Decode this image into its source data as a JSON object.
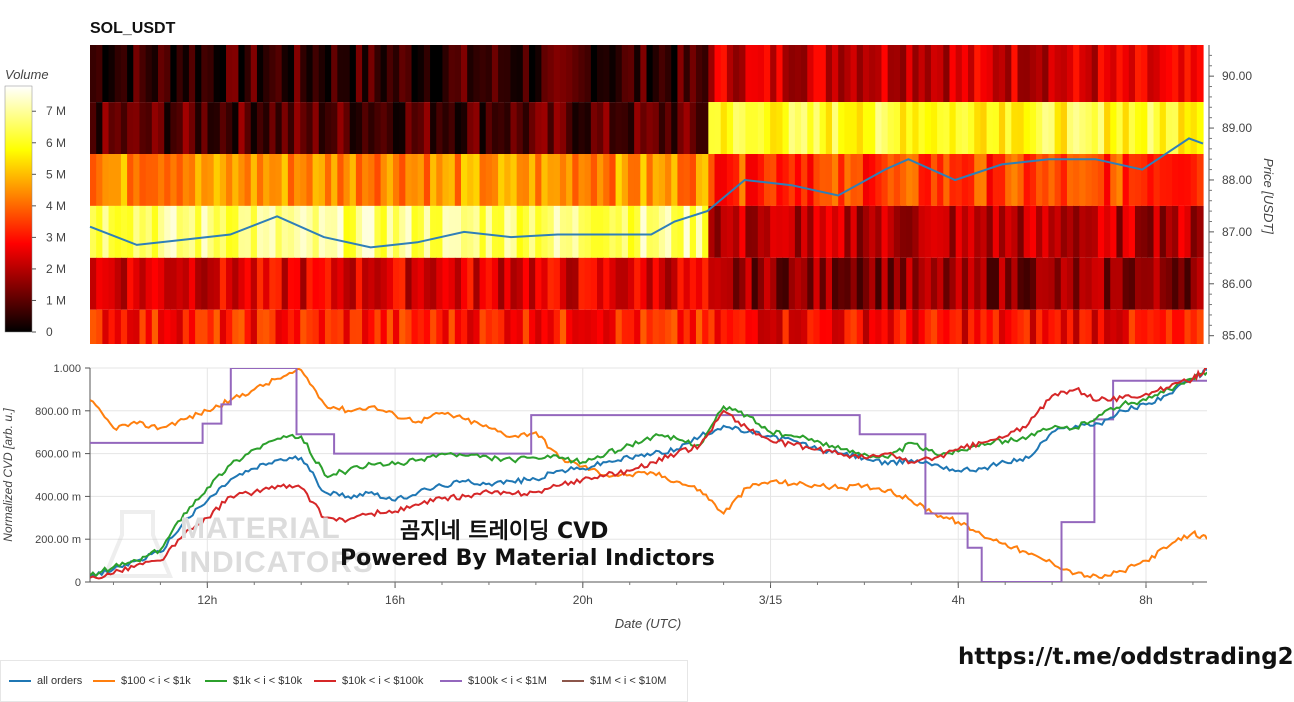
{
  "title": "SOL_USDT",
  "watermark": [
    "MATERIAL",
    "INDICATORS"
  ],
  "overlay_lines": [
    "곰지네 트레이딩 CVD",
    "Powered By Material Indictors"
  ],
  "link": "https://t.me/oddstrading2",
  "colors": {
    "all_orders": "#1f77b4",
    "r100_1k": "#ff7f0e",
    "r1k_10k": "#2ca02c",
    "r10k_100k": "#d62728",
    "r100k_1m": "#9467bd",
    "r1m_10m": "#8c564b"
  },
  "legend": [
    {
      "label": "all orders",
      "color": "#1f77b4"
    },
    {
      "label": "$100 < i < $1k",
      "color": "#ff7f0e"
    },
    {
      "label": "$1k < i < $10k",
      "color": "#2ca02c"
    },
    {
      "label": "$10k < i < $100k",
      "color": "#d62728"
    },
    {
      "label": "$100k < i < $1M",
      "color": "#9467bd"
    },
    {
      "label": "$1M < i < $10M",
      "color": "#8c564b"
    }
  ],
  "chart_data": [
    {
      "type": "heatmap",
      "title": "SOL_USDT",
      "ylabel": "Price [USDT]",
      "colorbar_label": "Volume",
      "colorbar_ticks": [
        "0",
        "1 M",
        "2 M",
        "3 M",
        "4 M",
        "5 M",
        "6 M",
        "7 M"
      ],
      "colorbar_range": [
        0,
        7800000
      ],
      "y_ticks": [
        "85.00",
        "86.00",
        "87.00",
        "88.00",
        "89.00",
        "90.00"
      ],
      "ylim": [
        84.84,
        90.6
      ],
      "x_range_hours": [
        9.5,
        33.3
      ],
      "price_bands": [
        {
          "low": 89.5,
          "high": 90.6,
          "level_before": 0.08,
          "level_after": 0.3
        },
        {
          "low": 88.5,
          "high": 89.5,
          "level_before": 0.12,
          "level_after": 0.78
        },
        {
          "low": 87.5,
          "high": 88.5,
          "level_before": 0.58,
          "level_after": 0.45
        },
        {
          "low": 86.5,
          "high": 87.5,
          "level_before": 0.86,
          "level_after": 0.26
        },
        {
          "low": 85.5,
          "high": 86.5,
          "level_before": 0.32,
          "level_after": 0.2
        },
        {
          "low": 84.84,
          "high": 85.5,
          "level_before": 0.4,
          "level_after": 0.36
        }
      ],
      "regime_change_hours": 22.7,
      "price_series": {
        "hours": [
          9.5,
          10.5,
          11.5,
          12.5,
          13.5,
          14.5,
          15.5,
          16.5,
          17.5,
          18.5,
          19.5,
          20.5,
          21.5,
          22.0,
          22.7,
          23.5,
          24.5,
          25.5,
          26.5,
          27.0,
          28.0,
          29.0,
          30.0,
          31.0,
          32.0,
          33.0,
          33.3
        ],
        "price": [
          87.1,
          86.75,
          86.85,
          86.95,
          87.3,
          86.9,
          86.7,
          86.8,
          87.0,
          86.9,
          86.95,
          86.95,
          86.95,
          87.2,
          87.4,
          88.0,
          87.9,
          87.7,
          88.2,
          88.4,
          88.0,
          88.3,
          88.4,
          88.4,
          88.2,
          88.8,
          88.7
        ]
      }
    },
    {
      "type": "line",
      "ylabel": "Normalized CVD [arb. u.]",
      "xlabel": "Date (UTC)",
      "x_ticks": [
        "12h",
        "16h",
        "20h",
        "3/15",
        "4h",
        "8h"
      ],
      "x_tick_hours": [
        12,
        16,
        20,
        24,
        28,
        32
      ],
      "y_ticks": [
        "0",
        "200.00 m",
        "400.00 m",
        "600.00 m",
        "800.00 m",
        "1.000"
      ],
      "ylim": [
        0,
        1
      ],
      "x_range_hours": [
        9.5,
        33.3
      ],
      "series": [
        {
          "name": "all orders",
          "x": [
            9.5,
            10.0,
            10.5,
            11.0,
            11.5,
            12.0,
            12.5,
            13.0,
            13.5,
            14.0,
            14.5,
            15.0,
            15.5,
            16.0,
            16.5,
            17.0,
            17.5,
            18.0,
            18.5,
            19.0,
            19.5,
            20.0,
            20.5,
            21.0,
            21.5,
            22.0,
            22.5,
            23.0,
            23.5,
            24.0,
            24.5,
            25.0,
            25.5,
            26.0,
            26.5,
            27.0,
            27.5,
            28.0,
            28.5,
            29.0,
            29.5,
            30.0,
            30.5,
            31.0,
            31.5,
            32.0,
            32.5,
            33.0,
            33.3
          ],
          "y": [
            0.02,
            0.06,
            0.1,
            0.14,
            0.28,
            0.38,
            0.48,
            0.53,
            0.57,
            0.58,
            0.42,
            0.4,
            0.42,
            0.38,
            0.42,
            0.45,
            0.47,
            0.46,
            0.47,
            0.48,
            0.52,
            0.53,
            0.56,
            0.58,
            0.6,
            0.62,
            0.68,
            0.73,
            0.7,
            0.68,
            0.66,
            0.62,
            0.6,
            0.58,
            0.55,
            0.57,
            0.55,
            0.52,
            0.53,
            0.56,
            0.58,
            0.7,
            0.73,
            0.74,
            0.8,
            0.83,
            0.88,
            0.95,
            0.99
          ]
        },
        {
          "name": "$100 < i < $1k",
          "x": [
            9.5,
            10.0,
            10.5,
            11.0,
            11.5,
            12.0,
            12.5,
            13.0,
            13.5,
            14.0,
            14.5,
            15.0,
            15.5,
            16.0,
            16.5,
            17.0,
            17.5,
            18.0,
            18.5,
            19.0,
            19.5,
            20.0,
            20.5,
            21.0,
            21.5,
            22.0,
            22.5,
            23.0,
            23.5,
            24.0,
            24.5,
            25.0,
            25.5,
            26.0,
            26.5,
            27.0,
            27.5,
            28.0,
            28.5,
            29.0,
            29.5,
            30.0,
            30.5,
            31.0,
            31.5,
            32.0,
            32.5,
            33.0,
            33.3
          ],
          "y": [
            0.85,
            0.72,
            0.74,
            0.72,
            0.76,
            0.8,
            0.85,
            0.9,
            0.95,
            0.99,
            0.83,
            0.8,
            0.82,
            0.78,
            0.75,
            0.79,
            0.76,
            0.72,
            0.68,
            0.7,
            0.58,
            0.54,
            0.5,
            0.5,
            0.51,
            0.47,
            0.43,
            0.32,
            0.44,
            0.47,
            0.46,
            0.45,
            0.44,
            0.45,
            0.43,
            0.38,
            0.32,
            0.28,
            0.22,
            0.18,
            0.13,
            0.09,
            0.04,
            0.02,
            0.05,
            0.1,
            0.17,
            0.23,
            0.2
          ]
        },
        {
          "name": "$1k < i < $10k",
          "x": [
            9.5,
            10.0,
            10.5,
            11.0,
            11.5,
            12.0,
            12.5,
            13.0,
            13.5,
            14.0,
            14.5,
            15.0,
            15.5,
            16.0,
            16.5,
            17.0,
            17.5,
            18.0,
            18.5,
            19.0,
            19.5,
            20.0,
            20.5,
            21.0,
            21.5,
            22.0,
            22.5,
            23.0,
            23.5,
            24.0,
            24.5,
            25.0,
            25.5,
            26.0,
            26.5,
            27.0,
            27.5,
            28.0,
            28.5,
            29.0,
            29.5,
            30.0,
            30.5,
            31.0,
            31.5,
            32.0,
            32.5,
            33.0,
            33.3
          ],
          "y": [
            0.03,
            0.07,
            0.1,
            0.15,
            0.32,
            0.44,
            0.55,
            0.62,
            0.67,
            0.68,
            0.5,
            0.52,
            0.55,
            0.55,
            0.57,
            0.6,
            0.59,
            0.58,
            0.57,
            0.58,
            0.58,
            0.56,
            0.6,
            0.64,
            0.68,
            0.67,
            0.64,
            0.82,
            0.78,
            0.7,
            0.68,
            0.66,
            0.62,
            0.6,
            0.58,
            0.65,
            0.6,
            0.61,
            0.65,
            0.66,
            0.68,
            0.72,
            0.72,
            0.78,
            0.83,
            0.85,
            0.9,
            0.95,
            0.98
          ]
        },
        {
          "name": "$10k < i < $100k",
          "x": [
            9.5,
            10.0,
            10.5,
            11.0,
            11.5,
            12.0,
            12.5,
            13.0,
            13.5,
            14.0,
            14.5,
            15.0,
            15.5,
            16.0,
            16.5,
            17.0,
            17.5,
            18.0,
            18.5,
            19.0,
            19.5,
            20.0,
            20.5,
            21.0,
            21.5,
            22.0,
            22.5,
            23.0,
            23.5,
            24.0,
            24.5,
            25.0,
            25.5,
            26.0,
            26.5,
            27.0,
            27.5,
            28.0,
            28.5,
            29.0,
            29.5,
            30.0,
            30.5,
            31.0,
            31.5,
            32.0,
            32.5,
            33.0,
            33.3
          ],
          "y": [
            0.02,
            0.04,
            0.08,
            0.1,
            0.22,
            0.3,
            0.4,
            0.42,
            0.45,
            0.44,
            0.3,
            0.29,
            0.32,
            0.33,
            0.36,
            0.39,
            0.4,
            0.42,
            0.41,
            0.42,
            0.45,
            0.48,
            0.5,
            0.52,
            0.56,
            0.6,
            0.64,
            0.8,
            0.72,
            0.66,
            0.64,
            0.62,
            0.6,
            0.58,
            0.6,
            0.56,
            0.58,
            0.62,
            0.65,
            0.68,
            0.74,
            0.87,
            0.9,
            0.85,
            0.86,
            0.88,
            0.91,
            0.95,
            1.0
          ]
        },
        {
          "name": "$100k < i < $1M",
          "x": [
            9.5,
            11.9,
            11.9,
            12.3,
            12.3,
            12.5,
            12.5,
            13.0,
            13.0,
            13.9,
            13.9,
            14.2,
            14.2,
            14.7,
            14.7,
            18.9,
            18.9,
            25.9,
            25.9,
            27.3,
            27.3,
            28.2,
            28.2,
            28.5,
            28.5,
            29.5,
            29.5,
            30.2,
            30.2,
            30.9,
            30.9,
            31.3,
            31.3,
            33.3
          ],
          "y": [
            0.65,
            0.65,
            0.74,
            0.74,
            0.83,
            0.83,
            1.0,
            1.0,
            1.0,
            1.0,
            0.69,
            0.69,
            0.69,
            0.69,
            0.6,
            0.6,
            0.78,
            0.78,
            0.69,
            0.69,
            0.32,
            0.32,
            0.16,
            0.16,
            0.0,
            0.0,
            0.0,
            0.0,
            0.28,
            0.28,
            0.76,
            0.76,
            0.94,
            0.94
          ]
        },
        {
          "name": "$1M < i < $10M",
          "x": [],
          "y": []
        }
      ]
    }
  ]
}
